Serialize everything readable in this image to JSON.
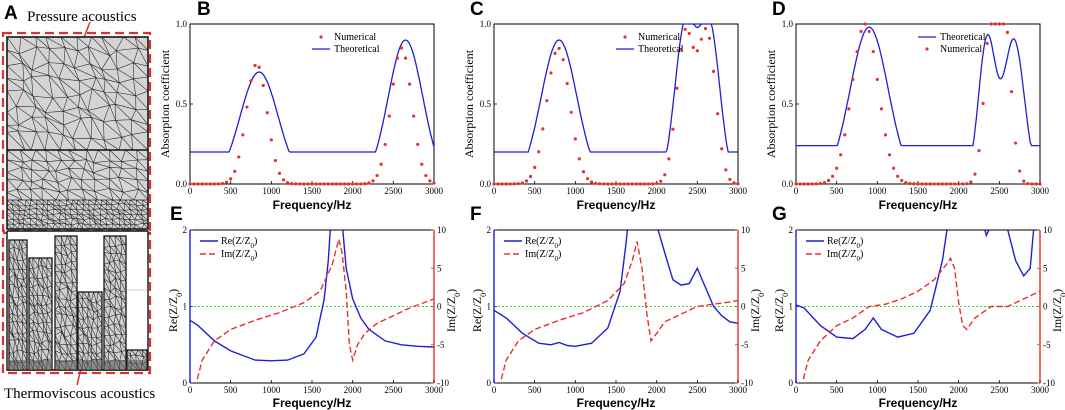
{
  "mesh_panel": {
    "letter": "A",
    "top_label": "Pressure acoustics",
    "bottom_label": "Thermoviscous acoustics"
  },
  "colors": {
    "theoretical": "#1f1fd8",
    "numerical": "#e8302c",
    "re_axis": "#1f1fd8",
    "im_axis": "#e8302c",
    "reference": "#3ad13a",
    "dash_frame": "#e03030"
  },
  "chart_data": [
    {
      "id": "B",
      "type": "line",
      "letter": "B",
      "xlabel": "Frequency/Hz",
      "ylabel": "Absorption coefficient",
      "xlim": [
        0,
        3000
      ],
      "ylim": [
        0,
        1
      ],
      "xticks": [
        0,
        500,
        1000,
        1500,
        2000,
        2500,
        3000
      ],
      "yticks": [
        0.0,
        0.5,
        1.0
      ],
      "legend_order": [
        "Numerical",
        "Theoretical"
      ],
      "series": [
        {
          "name": "Theoretical",
          "style": "line",
          "peaks": [
            [
              850,
              0.7,
              330
            ],
            [
              2650,
              0.9,
              300
            ]
          ],
          "base": 0.2
        },
        {
          "name": "Numerical",
          "style": "dots",
          "peaks": [
            [
              820,
              0.75,
              180
            ],
            [
              2600,
              0.85,
              180
            ]
          ],
          "base": 0.0
        }
      ]
    },
    {
      "id": "C",
      "type": "line",
      "letter": "C",
      "xlabel": "Frequency/Hz",
      "ylabel": "Absorption coefficient",
      "xlim": [
        0,
        3000
      ],
      "ylim": [
        0,
        1
      ],
      "xticks": [
        0,
        500,
        1000,
        1500,
        2000,
        2500,
        3000
      ],
      "yticks": [
        0.0,
        0.5,
        1.0
      ],
      "legend_order": [
        "Numerical",
        "Theoretical"
      ],
      "series": [
        {
          "name": "Theoretical",
          "style": "line",
          "peaks": [
            [
              800,
              0.9,
              310
            ],
            [
              2350,
              0.98,
              180
            ],
            [
              2650,
              0.98,
              180
            ]
          ],
          "base": 0.2
        },
        {
          "name": "Numerical",
          "style": "dots",
          "peaks": [
            [
              790,
              0.85,
              200
            ],
            [
              2350,
              0.93,
              150
            ],
            [
              2620,
              0.93,
              150
            ]
          ],
          "base": 0.0
        }
      ]
    },
    {
      "id": "D",
      "type": "line",
      "letter": "D",
      "xlabel": "Frequency/Hz",
      "ylabel": "Absorption coefficient",
      "xlim": [
        0,
        3000
      ],
      "ylim": [
        0,
        1
      ],
      "xticks": [
        0,
        500,
        1000,
        1500,
        2000,
        2500,
        3000
      ],
      "yticks": [
        0.0,
        0.5,
        1.0
      ],
      "legend_order": [
        "Theoretical",
        "Numerical"
      ],
      "series": [
        {
          "name": "Theoretical",
          "style": "line",
          "peaks": [
            [
              900,
              0.98,
              330
            ],
            [
              2350,
              0.9,
              150
            ],
            [
              2680,
              0.9,
              180
            ]
          ],
          "base": 0.24
        },
        {
          "name": "Numerical",
          "style": "dots",
          "peaks": [
            [
              850,
              1.0,
              230
            ],
            [
              2400,
              0.99,
              120
            ],
            [
              2560,
              0.99,
              120
            ]
          ],
          "base": 0.0
        }
      ]
    },
    {
      "id": "E",
      "type": "line",
      "letter": "E",
      "xlabel": "Frequency/Hz",
      "ylabel_left": "Re(Z/Z0)",
      "ylabel_right": "Im(Z/Z0)",
      "xlim": [
        0,
        3000
      ],
      "ylim_left": [
        0,
        2
      ],
      "ylim_right": [
        -10,
        10
      ],
      "xticks": [
        0,
        500,
        1000,
        1500,
        2000,
        2500,
        3000
      ],
      "yticks_left": [
        0,
        1,
        2
      ],
      "yticks_right": [
        -10,
        -5,
        0,
        5,
        10
      ],
      "legend": [
        "Re(Z/Z0)",
        "Im(Z/Z0)"
      ],
      "reference_line": 1,
      "series": [
        {
          "name": "Re(Z/Z0)",
          "axis": "left",
          "points": [
            [
              0,
              0.82
            ],
            [
              100,
              0.75
            ],
            [
              300,
              0.55
            ],
            [
              500,
              0.42
            ],
            [
              800,
              0.3
            ],
            [
              1000,
              0.29
            ],
            [
              1200,
              0.3
            ],
            [
              1400,
              0.38
            ],
            [
              1550,
              0.6
            ],
            [
              1650,
              1.1
            ],
            [
              1700,
              1.6
            ],
            [
              1730,
              2.1
            ]
          ]
        },
        {
          "name": "Re(Z/Z0) high",
          "axis": "left",
          "points": [
            [
              1870,
              2.1
            ],
            [
              1920,
              1.5
            ],
            [
              2000,
              1.1
            ],
            [
              2100,
              0.85
            ],
            [
              2200,
              0.7
            ],
            [
              2400,
              0.55
            ],
            [
              2600,
              0.5
            ],
            [
              2800,
              0.48
            ],
            [
              3000,
              0.47
            ]
          ]
        },
        {
          "name": "Im(Z/Z0)",
          "axis": "right",
          "points": [
            [
              90,
              -9.5
            ],
            [
              150,
              -7
            ],
            [
              300,
              -4.5
            ],
            [
              500,
              -3
            ],
            [
              800,
              -1.8
            ],
            [
              1100,
              -0.8
            ],
            [
              1400,
              0.5
            ],
            [
              1600,
              2
            ],
            [
              1750,
              5.5
            ],
            [
              1830,
              8.8
            ],
            [
              1870,
              7
            ],
            [
              1920,
              2
            ],
            [
              1960,
              -5
            ],
            [
              2000,
              -7
            ],
            [
              2060,
              -5
            ],
            [
              2150,
              -3.5
            ],
            [
              2300,
              -2.2
            ],
            [
              2500,
              -1.2
            ],
            [
              2700,
              -0.2
            ],
            [
              2900,
              0.6
            ],
            [
              3000,
              1
            ]
          ]
        }
      ]
    },
    {
      "id": "F",
      "type": "line",
      "letter": "F",
      "xlabel": "Frequency/Hz",
      "ylabel_left": "Re(Z/Z0)",
      "ylabel_right": "Im(Z/Z0)",
      "xlim": [
        0,
        3000
      ],
      "ylim_left": [
        0,
        2
      ],
      "ylim_right": [
        -10,
        10
      ],
      "xticks": [
        0,
        500,
        1000,
        1500,
        2000,
        2500,
        3000
      ],
      "yticks_left": [
        0,
        1,
        2
      ],
      "yticks_right": [
        -10,
        -5,
        0,
        5,
        10
      ],
      "legend": [
        "Re(Z/Z0)",
        "Im(Z/Z0)"
      ],
      "reference_line": 1,
      "series": [
        {
          "name": "Re(Z/Z0)",
          "axis": "left",
          "points": [
            [
              0,
              0.95
            ],
            [
              150,
              0.85
            ],
            [
              350,
              0.65
            ],
            [
              550,
              0.52
            ],
            [
              700,
              0.5
            ],
            [
              800,
              0.53
            ],
            [
              900,
              0.49
            ],
            [
              1000,
              0.48
            ],
            [
              1200,
              0.52
            ],
            [
              1400,
              0.72
            ],
            [
              1550,
              1.2
            ],
            [
              1620,
              1.8
            ],
            [
              1650,
              2.1
            ]
          ]
        },
        {
          "name": "Re(Z/Z0) high",
          "axis": "left",
          "points": [
            [
              1990,
              2.1
            ],
            [
              2100,
              1.7
            ],
            [
              2200,
              1.35
            ],
            [
              2300,
              1.28
            ],
            [
              2400,
              1.3
            ],
            [
              2500,
              1.5
            ],
            [
              2580,
              1.3
            ],
            [
              2700,
              1.0
            ],
            [
              2800,
              0.88
            ],
            [
              2900,
              0.8
            ],
            [
              3000,
              0.78
            ]
          ]
        },
        {
          "name": "Im(Z/Z0)",
          "axis": "right",
          "points": [
            [
              90,
              -9.5
            ],
            [
              150,
              -7
            ],
            [
              300,
              -4.5
            ],
            [
              500,
              -3
            ],
            [
              800,
              -1.8
            ],
            [
              1100,
              -0.8
            ],
            [
              1400,
              0.8
            ],
            [
              1600,
              3
            ],
            [
              1700,
              6
            ],
            [
              1760,
              8.5
            ],
            [
              1820,
              5
            ],
            [
              1880,
              -1
            ],
            [
              1930,
              -4.5
            ],
            [
              2000,
              -3.5
            ],
            [
              2100,
              -2
            ],
            [
              2300,
              -1
            ],
            [
              2500,
              0
            ],
            [
              2700,
              0.3
            ],
            [
              2900,
              0.6
            ],
            [
              3000,
              0.8
            ]
          ]
        }
      ]
    },
    {
      "id": "G",
      "type": "line",
      "letter": "G",
      "xlabel": "Frequency/Hz",
      "ylabel_left": "Re(Z/Z0)",
      "ylabel_right": "Im(Z/Z0)",
      "xlim": [
        0,
        3000
      ],
      "ylim_left": [
        0,
        2
      ],
      "ylim_right": [
        -10,
        10
      ],
      "xticks": [
        0,
        500,
        1000,
        1500,
        2000,
        2500,
        3000
      ],
      "yticks_left": [
        0,
        1,
        2
      ],
      "yticks_right": [
        -10,
        -5,
        0,
        5,
        10
      ],
      "legend": [
        "Re(Z/Z0)",
        "Im(Z/Z0)"
      ],
      "reference_line": 1,
      "series": [
        {
          "name": "Re(Z/Z0)",
          "axis": "left",
          "points": [
            [
              0,
              1.02
            ],
            [
              100,
              0.98
            ],
            [
              300,
              0.75
            ],
            [
              500,
              0.6
            ],
            [
              700,
              0.58
            ],
            [
              850,
              0.7
            ],
            [
              950,
              0.85
            ],
            [
              1050,
              0.7
            ],
            [
              1250,
              0.6
            ],
            [
              1450,
              0.65
            ],
            [
              1650,
              0.95
            ],
            [
              1800,
              1.6
            ],
            [
              1870,
              2.1
            ]
          ]
        },
        {
          "name": "Re(Z/Z0) high",
          "axis": "left",
          "points": [
            [
              2300,
              2.1
            ],
            [
              2340,
              1.93
            ],
            [
              2380,
              2.02
            ],
            [
              2430,
              2.1
            ]
          ]
        },
        {
          "name": "Re(Z/Z0) tail",
          "axis": "left",
          "points": [
            [
              2580,
              2.1
            ],
            [
              2700,
              1.6
            ],
            [
              2800,
              1.4
            ],
            [
              2880,
              1.5
            ],
            [
              2930,
              2.1
            ]
          ]
        },
        {
          "name": "Im(Z/Z0)",
          "axis": "right",
          "points": [
            [
              90,
              -9.5
            ],
            [
              150,
              -7
            ],
            [
              300,
              -4.5
            ],
            [
              500,
              -2.5
            ],
            [
              700,
              -1.5
            ],
            [
              900,
              0
            ],
            [
              1100,
              0.3
            ],
            [
              1300,
              1
            ],
            [
              1500,
              2
            ],
            [
              1700,
              3.5
            ],
            [
              1850,
              5.5
            ],
            [
              1900,
              6.3
            ],
            [
              1950,
              5
            ],
            [
              2000,
              0.5
            ],
            [
              2050,
              -2.5
            ],
            [
              2100,
              -3
            ],
            [
              2200,
              -1.5
            ],
            [
              2400,
              0
            ],
            [
              2600,
              0
            ],
            [
              2800,
              1
            ],
            [
              3000,
              2
            ]
          ]
        }
      ]
    }
  ]
}
